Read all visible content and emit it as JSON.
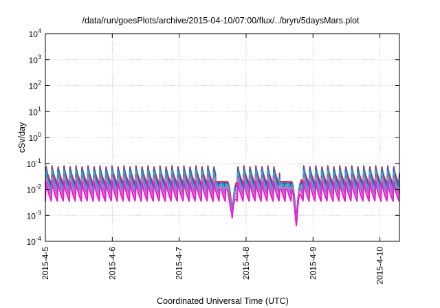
{
  "chart_data": {
    "type": "line",
    "title": "/data/run/goesPlots/archive/2015-04-10/07:00/flux/../bryn/5daysMars.plot",
    "xlabel": "Coordinated Universal Time (UTC)",
    "ylabel": "cSv/day",
    "yscale": "log",
    "ylim": [
      0.0001,
      10000
    ],
    "y_ticks": [
      {
        "value": 0.0001,
        "base": "10",
        "exp": "-4"
      },
      {
        "value": 0.001,
        "base": "10",
        "exp": "-3"
      },
      {
        "value": 0.01,
        "base": "10",
        "exp": "-2"
      },
      {
        "value": 0.1,
        "base": "10",
        "exp": "-1"
      },
      {
        "value": 1,
        "base": "10",
        "exp": "0"
      },
      {
        "value": 10,
        "base": "10",
        "exp": "1"
      },
      {
        "value": 100,
        "base": "10",
        "exp": "2"
      },
      {
        "value": 1000,
        "base": "10",
        "exp": "3"
      },
      {
        "value": 10000,
        "base": "10",
        "exp": "4"
      }
    ],
    "xlim": [
      "2015-04-05",
      "2015-04-10 07:00"
    ],
    "x_ticks": [
      "2015-4-5",
      "2015-4-6",
      "2015-4-7",
      "2015-4-8",
      "2015-4-9",
      "2015-4-10"
    ],
    "grid": true,
    "cycle_hours": 2.15,
    "dips": [
      {
        "time": "2015-04-07 19:00",
        "peak": 0.02,
        "min": 0.0008
      },
      {
        "time": "2015-04-08 18:00",
        "peak": 0.02,
        "min": 0.0004
      }
    ],
    "series": [
      {
        "color": "#d62728",
        "peak": 0.085,
        "trough": 0.016
      },
      {
        "color": "#2a62c9",
        "peak": 0.075,
        "trough": 0.012
      },
      {
        "color": "#17becf",
        "peak": 0.055,
        "trough": 0.008
      },
      {
        "color": "#9467bd",
        "peak": 0.04,
        "trough": 0.006
      },
      {
        "color": "#e377c2",
        "peak": 0.03,
        "trough": 0.0045
      },
      {
        "color": "#e81cd2",
        "peak": 0.022,
        "trough": 0.0035
      }
    ]
  }
}
